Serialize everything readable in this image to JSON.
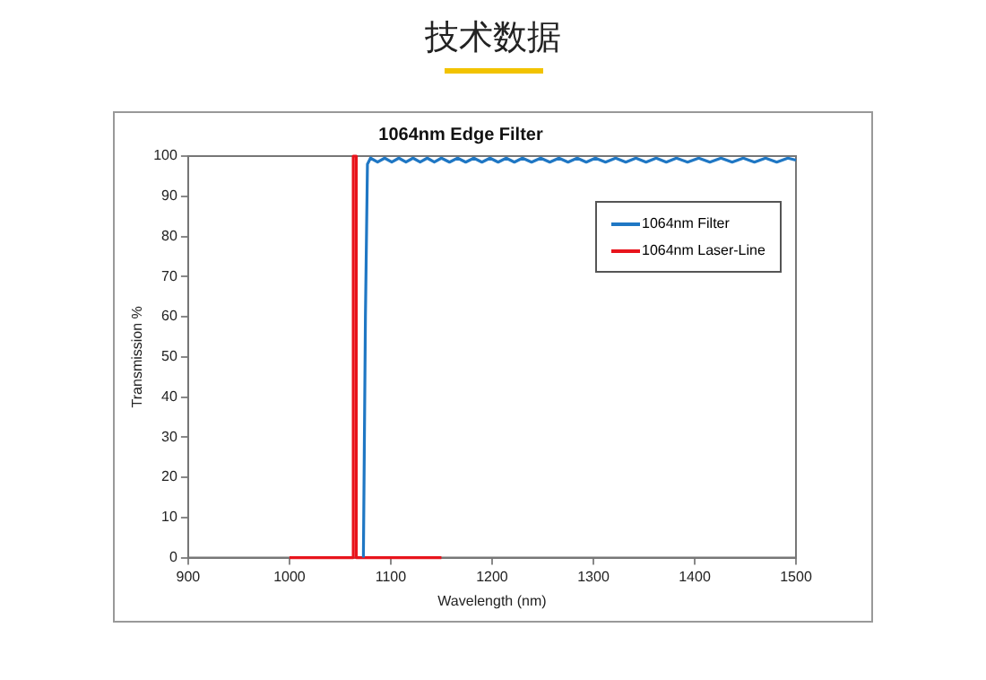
{
  "chart_data": {
    "type": "line",
    "title": "技术数据",
    "subtitle": "1064nm Edge Filter",
    "xlabel": "Wavelength (nm)",
    "ylabel": "Transmission %",
    "xlim": [
      900,
      1500
    ],
    "xticks": [
      900,
      1000,
      1100,
      1200,
      1300,
      1400,
      1500
    ],
    "ylim": [
      0,
      100
    ],
    "yticks": [
      0,
      10,
      20,
      30,
      40,
      50,
      60,
      70,
      80,
      90,
      100
    ],
    "grid": false,
    "legend": "top right",
    "marker": "none",
    "line_style": "solid",
    "series": [
      {
        "name": "1064nm Filter",
        "color": "#1f77c4",
        "x": [
          1073,
          1075,
          1077,
          1080,
          1087,
          1094,
          1101,
          1108,
          1115,
          1122,
          1129,
          1136,
          1143,
          1150,
          1158,
          1166,
          1174,
          1182,
          1190,
          1198,
          1206,
          1214,
          1222,
          1230,
          1239,
          1248,
          1257,
          1266,
          1275,
          1284,
          1293,
          1302,
          1312,
          1322,
          1332,
          1342,
          1352,
          1362,
          1372,
          1382,
          1393,
          1404,
          1415,
          1426,
          1437,
          1448,
          1459,
          1470,
          1481,
          1492,
          1500
        ],
        "values": [
          0,
          60,
          98,
          99.5,
          98.5,
          99.5,
          98.5,
          99.5,
          98.5,
          99.5,
          98.5,
          99.5,
          98.5,
          99.5,
          98.5,
          99.5,
          98.5,
          99.5,
          98.5,
          99.5,
          98.5,
          99.5,
          98.5,
          99.5,
          98.5,
          99.5,
          98.5,
          99.5,
          98.5,
          99.5,
          98.5,
          99.5,
          98.5,
          99.5,
          98.5,
          99.5,
          98.5,
          99.5,
          98.5,
          99.5,
          98.5,
          99.5,
          98.5,
          99.5,
          98.5,
          99.5,
          98.5,
          99.5,
          98.5,
          99.5,
          99
        ]
      },
      {
        "name": "1064nm Laser-Line",
        "color": "#e8141c",
        "x": [
          1000,
          1063,
          1063,
          1066,
          1066,
          1150
        ],
        "values": [
          0,
          0,
          100,
          100,
          0,
          0
        ]
      }
    ]
  }
}
